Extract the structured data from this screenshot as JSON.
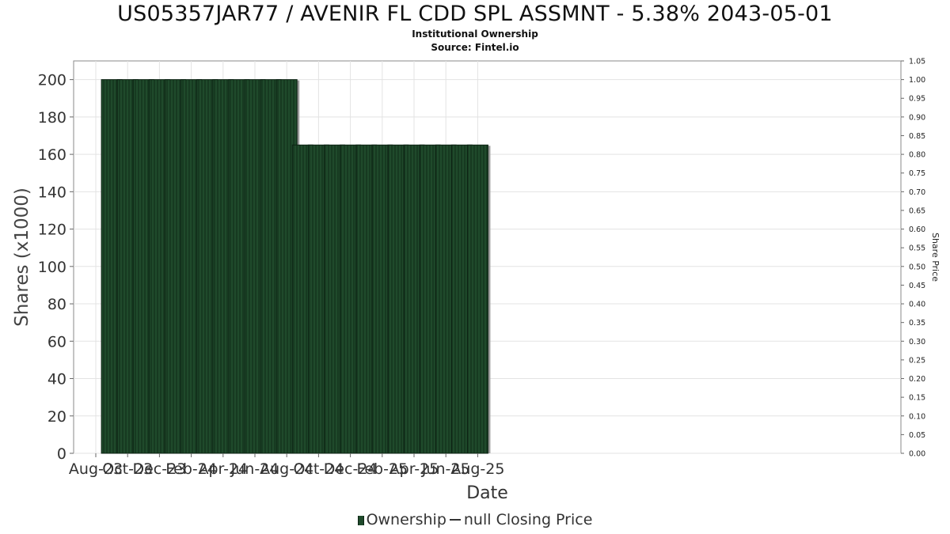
{
  "header": {
    "title": "US05357JAR77 / AVENIR FL CDD SPL ASSMNT - 5.38% 2043-05-01",
    "subtitle": "Institutional Ownership",
    "source": "Source: Fintel.io"
  },
  "legend": {
    "ownership_label": "Ownership",
    "price_label": "null Closing Price"
  },
  "colors": {
    "bar_fill": "#1f4a2b",
    "bar_stripe": "#0f2a17",
    "bar_shadow": "#9a9a9a",
    "grid": "#e3e3e3"
  },
  "chart_data": {
    "type": "bar",
    "title": "US05357JAR77 / AVENIR FL CDD SPL ASSMNT - 5.38% 2043-05-01",
    "xlabel": "Date",
    "ylabel": "Shares (x1000)",
    "y2label": "Share Price",
    "ylim": [
      0,
      210
    ],
    "y2lim": [
      0,
      1.05
    ],
    "yticks": [
      0,
      20,
      40,
      60,
      80,
      100,
      120,
      140,
      160,
      180,
      200
    ],
    "y2ticks": [
      "0.00",
      "0.05",
      "0.10",
      "0.15",
      "0.20",
      "0.25",
      "0.30",
      "0.35",
      "0.40",
      "0.45",
      "0.50",
      "0.55",
      "0.60",
      "0.65",
      "0.70",
      "0.75",
      "0.80",
      "0.85",
      "0.90",
      "0.95",
      "1.00",
      "1.05"
    ],
    "xticks": [
      "Aug-23",
      "Oct-23",
      "Dec-23",
      "Feb-24",
      "Apr-24",
      "Jun-24",
      "Aug-24",
      "Oct-24",
      "Dec-24",
      "Feb-25",
      "Apr-25",
      "Jun-25",
      "Aug-25"
    ],
    "grid": true,
    "legend_position": "bottom",
    "series": [
      {
        "name": "Ownership",
        "x": [
          "Sep-23",
          "Oct-23",
          "Nov-23",
          "Dec-23",
          "Jan-24",
          "Feb-24",
          "Mar-24",
          "Apr-24",
          "May-24",
          "Jun-24",
          "Jul-24",
          "Aug-24",
          "Sep-24",
          "Oct-24",
          "Nov-24",
          "Dec-24",
          "Jan-25",
          "Feb-25",
          "Mar-25",
          "Apr-25",
          "May-25",
          "Jun-25",
          "Jul-25",
          "Aug-25"
        ],
        "values": [
          200,
          200,
          200,
          200,
          200,
          200,
          200,
          200,
          200,
          200,
          200,
          200,
          165,
          165,
          165,
          165,
          165,
          165,
          165,
          165,
          165,
          165,
          165,
          165
        ]
      },
      {
        "name": "null Closing Price",
        "values": []
      }
    ]
  }
}
